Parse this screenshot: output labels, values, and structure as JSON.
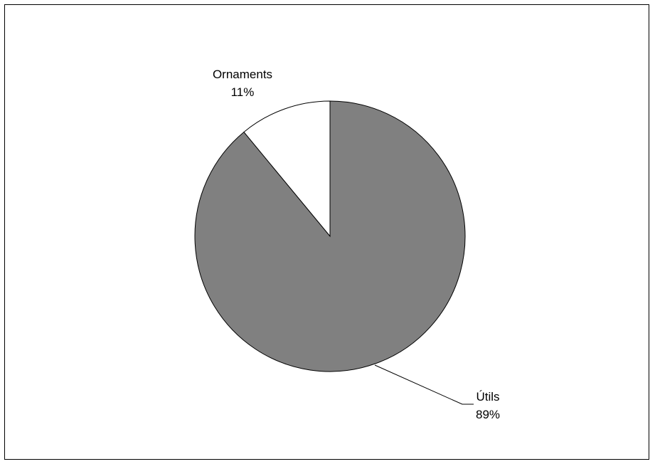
{
  "chart_data": {
    "type": "pie",
    "title": "",
    "slices": [
      {
        "label": "Ornaments",
        "value": 11,
        "value_label": "11%",
        "color": "#ffffff"
      },
      {
        "label": "Útils",
        "value": 89,
        "value_label": "89%",
        "color": "#808080"
      }
    ],
    "legend": "none"
  }
}
